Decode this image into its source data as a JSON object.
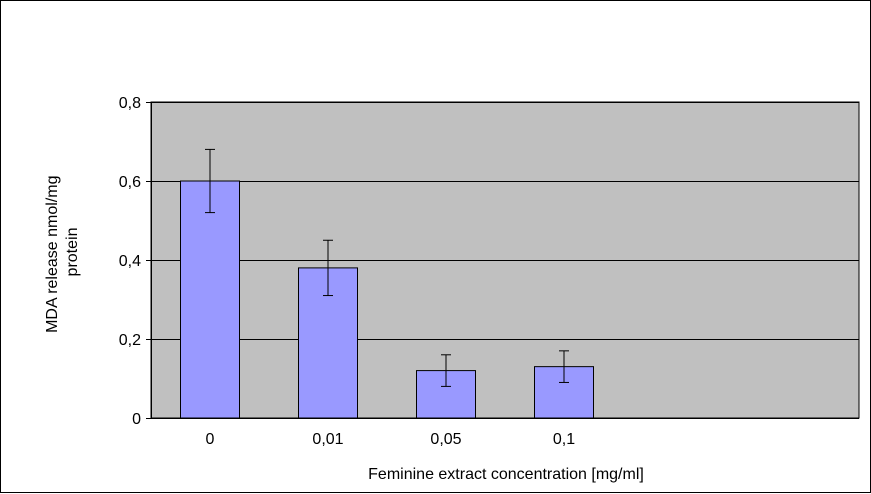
{
  "chart_data": {
    "type": "bar",
    "categories": [
      "0",
      "0,01",
      "0,05",
      "0,1"
    ],
    "values": [
      0.6,
      0.38,
      0.12,
      0.13
    ],
    "errors": [
      0.08,
      0.07,
      0.04,
      0.04
    ],
    "xlabel": "Feminine extract concentration [mg/ml]",
    "ylabel_lines": [
      "MDA release nmol/mg",
      "protein"
    ],
    "ylim": [
      0,
      0.8
    ],
    "yticks": [
      0,
      0.2,
      0.4,
      0.6,
      0.8
    ],
    "ytick_labels": [
      "0",
      "0,2",
      "0,4",
      "0,6",
      "0,8"
    ],
    "grid": true,
    "legend": "none",
    "colors": {
      "bar_fill": "#9999ff",
      "plot_background": "#c0c0c0",
      "outline": "#000000"
    }
  }
}
